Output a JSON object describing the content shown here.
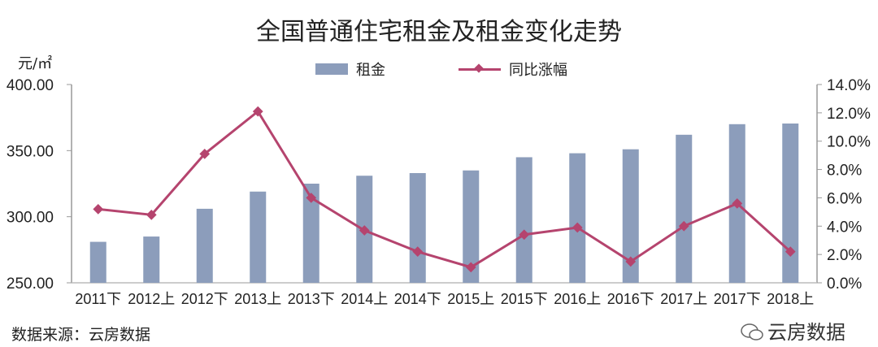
{
  "chart_data": {
    "type": "bar+line",
    "title": "全国普通住宅租金及租金变化走势",
    "ylabel_left": "元/㎡",
    "categories": [
      "2011下",
      "2012上",
      "2012下",
      "2013上",
      "2013下",
      "2014上",
      "2014下",
      "2015上",
      "2015下",
      "2016上",
      "2016下",
      "2017上",
      "2017下",
      "2018上"
    ],
    "series": [
      {
        "name": "租金",
        "type": "bar",
        "axis": "left",
        "color": "#8c9dbb",
        "values": [
          281,
          285,
          306,
          319,
          325,
          331,
          333,
          335,
          345,
          348,
          351,
          362,
          370,
          370.5
        ]
      },
      {
        "name": "同比涨幅",
        "type": "line",
        "axis": "right",
        "color": "#b5446e",
        "values": [
          5.2,
          4.8,
          9.1,
          12.1,
          6.0,
          3.7,
          2.2,
          1.1,
          3.4,
          3.9,
          1.5,
          4.0,
          5.6,
          2.2
        ]
      }
    ],
    "left_axis": {
      "range": [
        250,
        400
      ],
      "ticks": [
        "250.00",
        "300.00",
        "350.00",
        "400.00"
      ]
    },
    "right_axis": {
      "range": [
        0,
        14
      ],
      "ticks": [
        "0.0%",
        "2.0%",
        "4.0%",
        "6.0%",
        "8.0%",
        "10.0%",
        "12.0%",
        "14.0%"
      ]
    },
    "legend_position": "top-center",
    "grid": false
  },
  "source": "数据来源：云房数据",
  "watermark": "云房数据"
}
